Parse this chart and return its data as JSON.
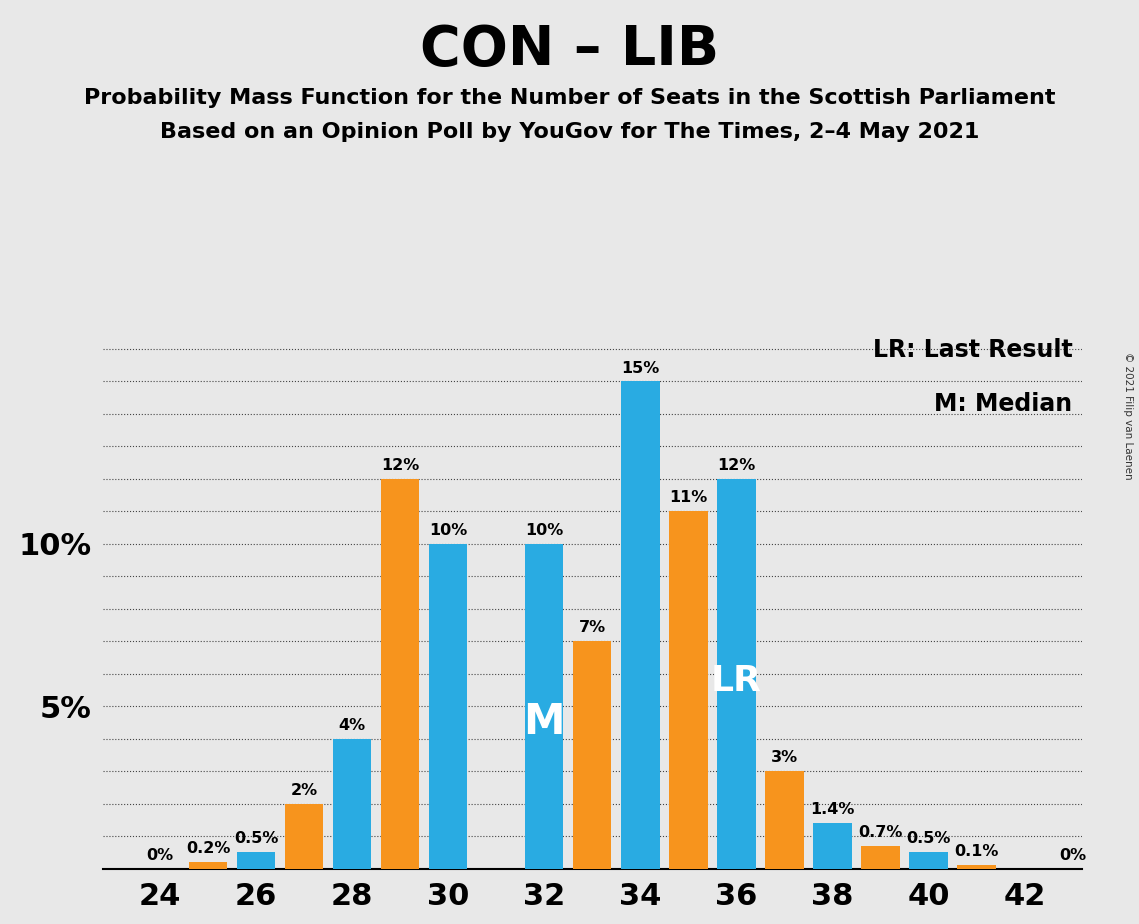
{
  "title": "CON – LIB",
  "subtitle1": "Probability Mass Function for the Number of Seats in the Scottish Parliament",
  "subtitle2": "Based on an Opinion Poll by YouGov for The Times, 2–4 May 2021",
  "copyright": "© 2021 Filip van Laenen",
  "blue_color": "#29ABE2",
  "orange_color": "#F7941D",
  "background_color": "#E8E8E8",
  "legend_lr_label": "LR: Last Result",
  "legend_m_label": "M: Median",
  "ylim": [
    0,
    16.5
  ],
  "ytick_positions": [
    1,
    2,
    3,
    4,
    5,
    6,
    7,
    8,
    9,
    10,
    11,
    12,
    13,
    14,
    15,
    16
  ],
  "blue_data": {
    "24": 0.0,
    "26": 0.5,
    "28": 4.0,
    "30": 10.0,
    "32": 10.0,
    "34": 15.0,
    "36": 12.0,
    "38": 1.4,
    "40": 0.5,
    "42": 0.0
  },
  "orange_data": {
    "25": 0.2,
    "27": 2.0,
    "29": 12.0,
    "31": 0.0,
    "33": 7.0,
    "35": 11.0,
    "37": 3.0,
    "39": 0.7,
    "41": 0.1
  },
  "blue_labels": {
    "24": "0%",
    "26": "0.5%",
    "28": "4%",
    "30": "10%",
    "32": "10%",
    "34": "15%",
    "36": "12%",
    "38": "1.4%",
    "40": "0.5%",
    "42": ""
  },
  "orange_labels": {
    "25": "0.2%",
    "27": "2%",
    "29": "12%",
    "33": "7%",
    "35": "11%",
    "37": "3%",
    "39": "0.7%",
    "41": "0.1%"
  },
  "median_x": 32,
  "lr_x": 36,
  "bar_width": 0.8,
  "xlim": [
    22.8,
    43.2
  ],
  "xticks": [
    24,
    26,
    28,
    30,
    32,
    34,
    36,
    38,
    40,
    42
  ]
}
